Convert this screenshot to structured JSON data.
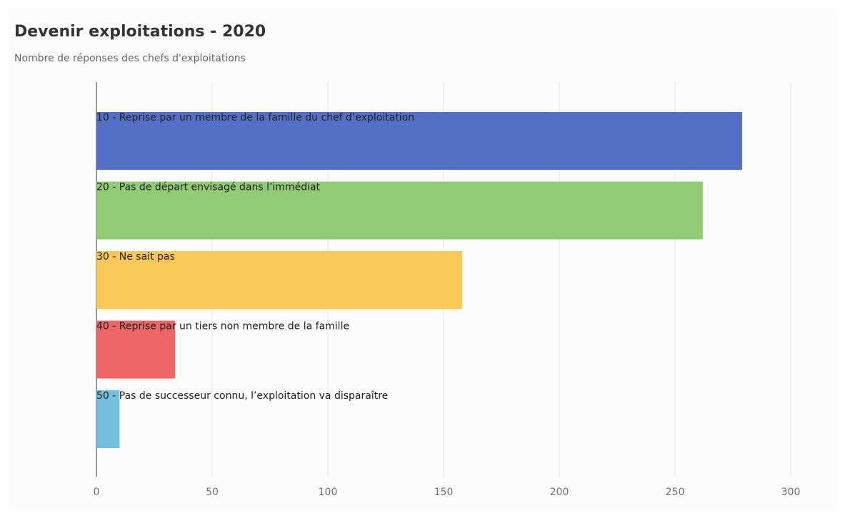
{
  "chart_data": {
    "type": "bar",
    "orientation": "horizontal",
    "title": "Devenir exploitations - 2020",
    "subtitle": "Nombre de réponses des chefs d'exploitations",
    "categories": [
      "10 - Reprise par un membre de la famille du chef d’exploitation",
      "20 - Pas de départ envisagé dans l’immédiat",
      "30 - Ne sait pas",
      "40 - Reprise par un tiers non membre de la famille",
      "50 - Pas de successeur connu, l’exploitation va disparaître"
    ],
    "values": [
      279,
      262,
      158,
      34,
      10
    ],
    "colors": [
      "#5470c6",
      "#91cc75",
      "#fac858",
      "#ee6666",
      "#73c0de"
    ],
    "xlim": [
      0,
      300
    ],
    "xticks": [
      0,
      50,
      100,
      150,
      200,
      250,
      300
    ],
    "grid": true
  }
}
